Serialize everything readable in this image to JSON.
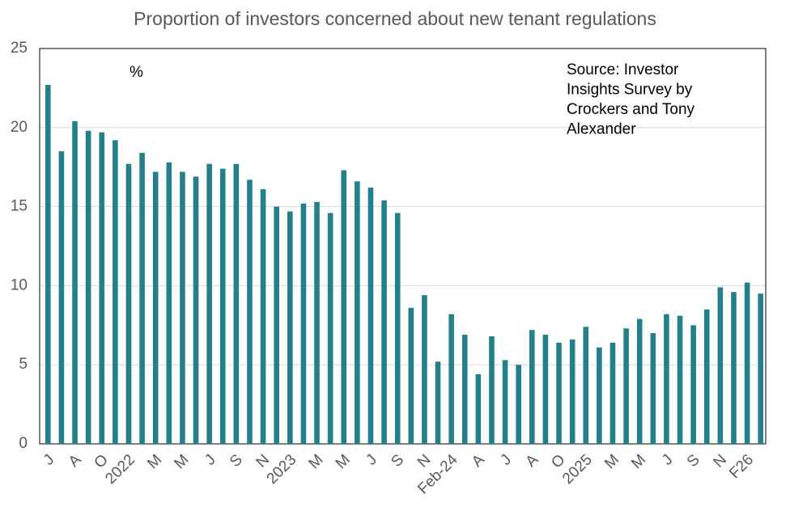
{
  "chart_data": {
    "type": "bar",
    "title": "Proportion of investors concerned about new tenant regulations",
    "unit_label": "%",
    "source_lines": [
      "Source: Investor",
      "Insights Survey by",
      "Crockers and Tony",
      "Alexander"
    ],
    "color": "#23808a",
    "categories": [
      "J",
      null,
      "A",
      null,
      "O",
      null,
      "2022",
      null,
      "M",
      null,
      "M",
      null,
      "J",
      null,
      "S",
      null,
      "N",
      null,
      "2023",
      null,
      "M",
      null,
      "M",
      null,
      "J",
      null,
      "S",
      null,
      "N",
      null,
      "Feb-24",
      null,
      "A",
      null,
      "J",
      null,
      "A",
      null,
      "O",
      null,
      "2025",
      null,
      "M",
      null,
      "M",
      null,
      "J",
      null,
      "S",
      null,
      "N",
      null,
      "F26",
      null
    ],
    "values": [
      22.7,
      18.5,
      20.4,
      19.8,
      19.7,
      19.2,
      17.7,
      18.4,
      17.2,
      17.8,
      17.2,
      16.9,
      17.7,
      17.4,
      17.7,
      16.7,
      16.1,
      15.0,
      14.7,
      15.2,
      15.3,
      14.6,
      17.3,
      16.6,
      16.2,
      15.4,
      14.6,
      8.6,
      9.4,
      5.2,
      8.2,
      6.9,
      4.4,
      6.8,
      5.3,
      5.0,
      7.2,
      6.9,
      6.4,
      6.6,
      7.4,
      6.1,
      6.4,
      7.3,
      7.9,
      7.0,
      8.2,
      8.1,
      7.5,
      8.5,
      9.9,
      9.6,
      10.2,
      9.5
    ],
    "ylim": [
      0,
      25
    ],
    "yticks": [
      0,
      5,
      10,
      15,
      20,
      25
    ],
    "grid": true
  }
}
